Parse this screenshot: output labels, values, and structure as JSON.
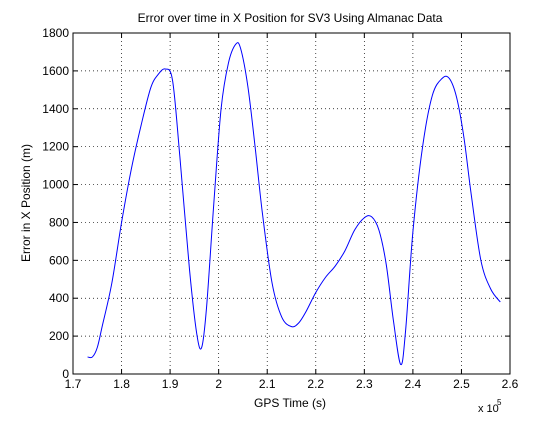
{
  "chart_data": {
    "type": "line",
    "title": "Error over time in X Position for SV3 Using Almanac Data",
    "xlabel": "GPS Time (s)",
    "ylabel": "Error in X Position (m)",
    "x_multiplier_label": "x 10",
    "x_multiplier_exponent": "5",
    "xlim": [
      1.7,
      2.6
    ],
    "ylim": [
      0,
      1800
    ],
    "x_ticks": [
      1.7,
      1.8,
      1.9,
      2.0,
      2.1,
      2.2,
      2.3,
      2.4,
      2.5,
      2.6
    ],
    "x_tick_labels": [
      "1.7",
      "1.8",
      "1.9",
      "2",
      "2.1",
      "2.2",
      "2.3",
      "2.4",
      "2.5",
      "2.6"
    ],
    "y_ticks": [
      0,
      200,
      400,
      600,
      800,
      1000,
      1200,
      1400,
      1600,
      1800
    ],
    "y_tick_labels": [
      "0",
      "200",
      "400",
      "600",
      "800",
      "1000",
      "1200",
      "1400",
      "1600",
      "1800"
    ],
    "grid": true,
    "grid_style": "dotted",
    "line_color": "#0000ff",
    "series": [
      {
        "x": [
          1.73,
          1.74,
          1.75,
          1.76,
          1.78,
          1.8,
          1.82,
          1.84,
          1.86,
          1.875,
          1.89,
          1.905,
          1.92,
          1.94,
          1.955,
          1.965,
          1.975,
          1.99,
          2.005,
          2.02,
          2.035,
          2.045,
          2.06,
          2.075,
          2.09,
          2.11,
          2.13,
          2.15,
          2.165,
          2.18,
          2.2,
          2.22,
          2.24,
          2.26,
          2.28,
          2.3,
          2.315,
          2.33,
          2.345,
          2.36,
          2.375,
          2.385,
          2.4,
          2.42,
          2.44,
          2.46,
          2.475,
          2.49,
          2.505,
          2.52,
          2.54,
          2.56,
          2.58
        ],
        "y": [
          90,
          90,
          140,
          250,
          480,
          800,
          1080,
          1310,
          1510,
          1580,
          1610,
          1550,
          1150,
          550,
          210,
          140,
          350,
          900,
          1400,
          1640,
          1740,
          1720,
          1520,
          1200,
          850,
          480,
          300,
          250,
          270,
          330,
          430,
          510,
          570,
          650,
          760,
          825,
          830,
          760,
          580,
          280,
          50,
          230,
          750,
          1200,
          1470,
          1560,
          1560,
          1460,
          1250,
          950,
          600,
          450,
          380
        ]
      }
    ]
  }
}
